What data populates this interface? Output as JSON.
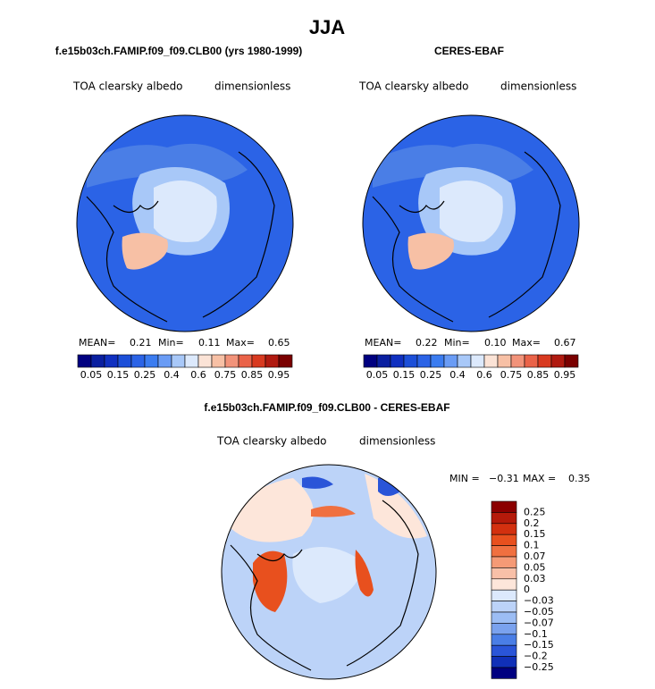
{
  "title": "JJA",
  "panels": [
    {
      "title": "f.e15b03ch.FAMIP.f09_f09.CLB00 (yrs 1980-1999)",
      "variable": "TOA clearsky albedo",
      "units": "dimensionless",
      "stats": {
        "mean_label": "MEAN=",
        "mean": "0.21",
        "min_label": "Min=",
        "min": "0.11",
        "max_label": "Max=",
        "max": "0.65"
      }
    },
    {
      "title": "CERES-EBAF",
      "variable": "TOA clearsky albedo",
      "units": "dimensionless",
      "stats": {
        "mean_label": "MEAN=",
        "mean": "0.22",
        "min_label": "Min=",
        "min": "0.10",
        "max_label": "Max=",
        "max": "0.67"
      }
    }
  ],
  "colorbar": {
    "labels": [
      "0.05",
      "0.15",
      "0.25",
      "0.4",
      "0.6",
      "0.75",
      "0.85",
      "0.95"
    ],
    "colors": [
      "#000080",
      "#0a1fa0",
      "#1030c0",
      "#1c4fd8",
      "#2b63e6",
      "#3b7cf0",
      "#6a9cf5",
      "#a8c8f8",
      "#dce9fc",
      "#fbe3d6",
      "#f7c0a5",
      "#f2937a",
      "#ea6349",
      "#d83a20",
      "#b01a10",
      "#7a0000"
    ]
  },
  "difference": {
    "title": "f.e15b03ch.FAMIP.f09_f09.CLB00 - CERES-EBAF",
    "variable": "TOA clearsky albedo",
    "units": "dimensionless",
    "stats": {
      "min_label": "MIN =",
      "min": "−0.31",
      "max_label": "MAX =",
      "max": "0.35"
    },
    "colorbar": {
      "labels": [
        "0.25",
        "0.2",
        "0.15",
        "0.1",
        "0.07",
        "0.05",
        "0.03",
        "0",
        "−0.03",
        "−0.05",
        "−0.07",
        "−0.1",
        "−0.15",
        "−0.2",
        "−0.25"
      ],
      "colors": [
        "#8b0000",
        "#b51a0a",
        "#d3300f",
        "#e8501e",
        "#f07040",
        "#f59a76",
        "#f8c0a8",
        "#fde6da",
        "#dce9fc",
        "#bcd3f8",
        "#9cbdf4",
        "#7aa2ee",
        "#4a7ee6",
        "#2a55d8",
        "#1030b8",
        "#000080"
      ]
    }
  }
}
